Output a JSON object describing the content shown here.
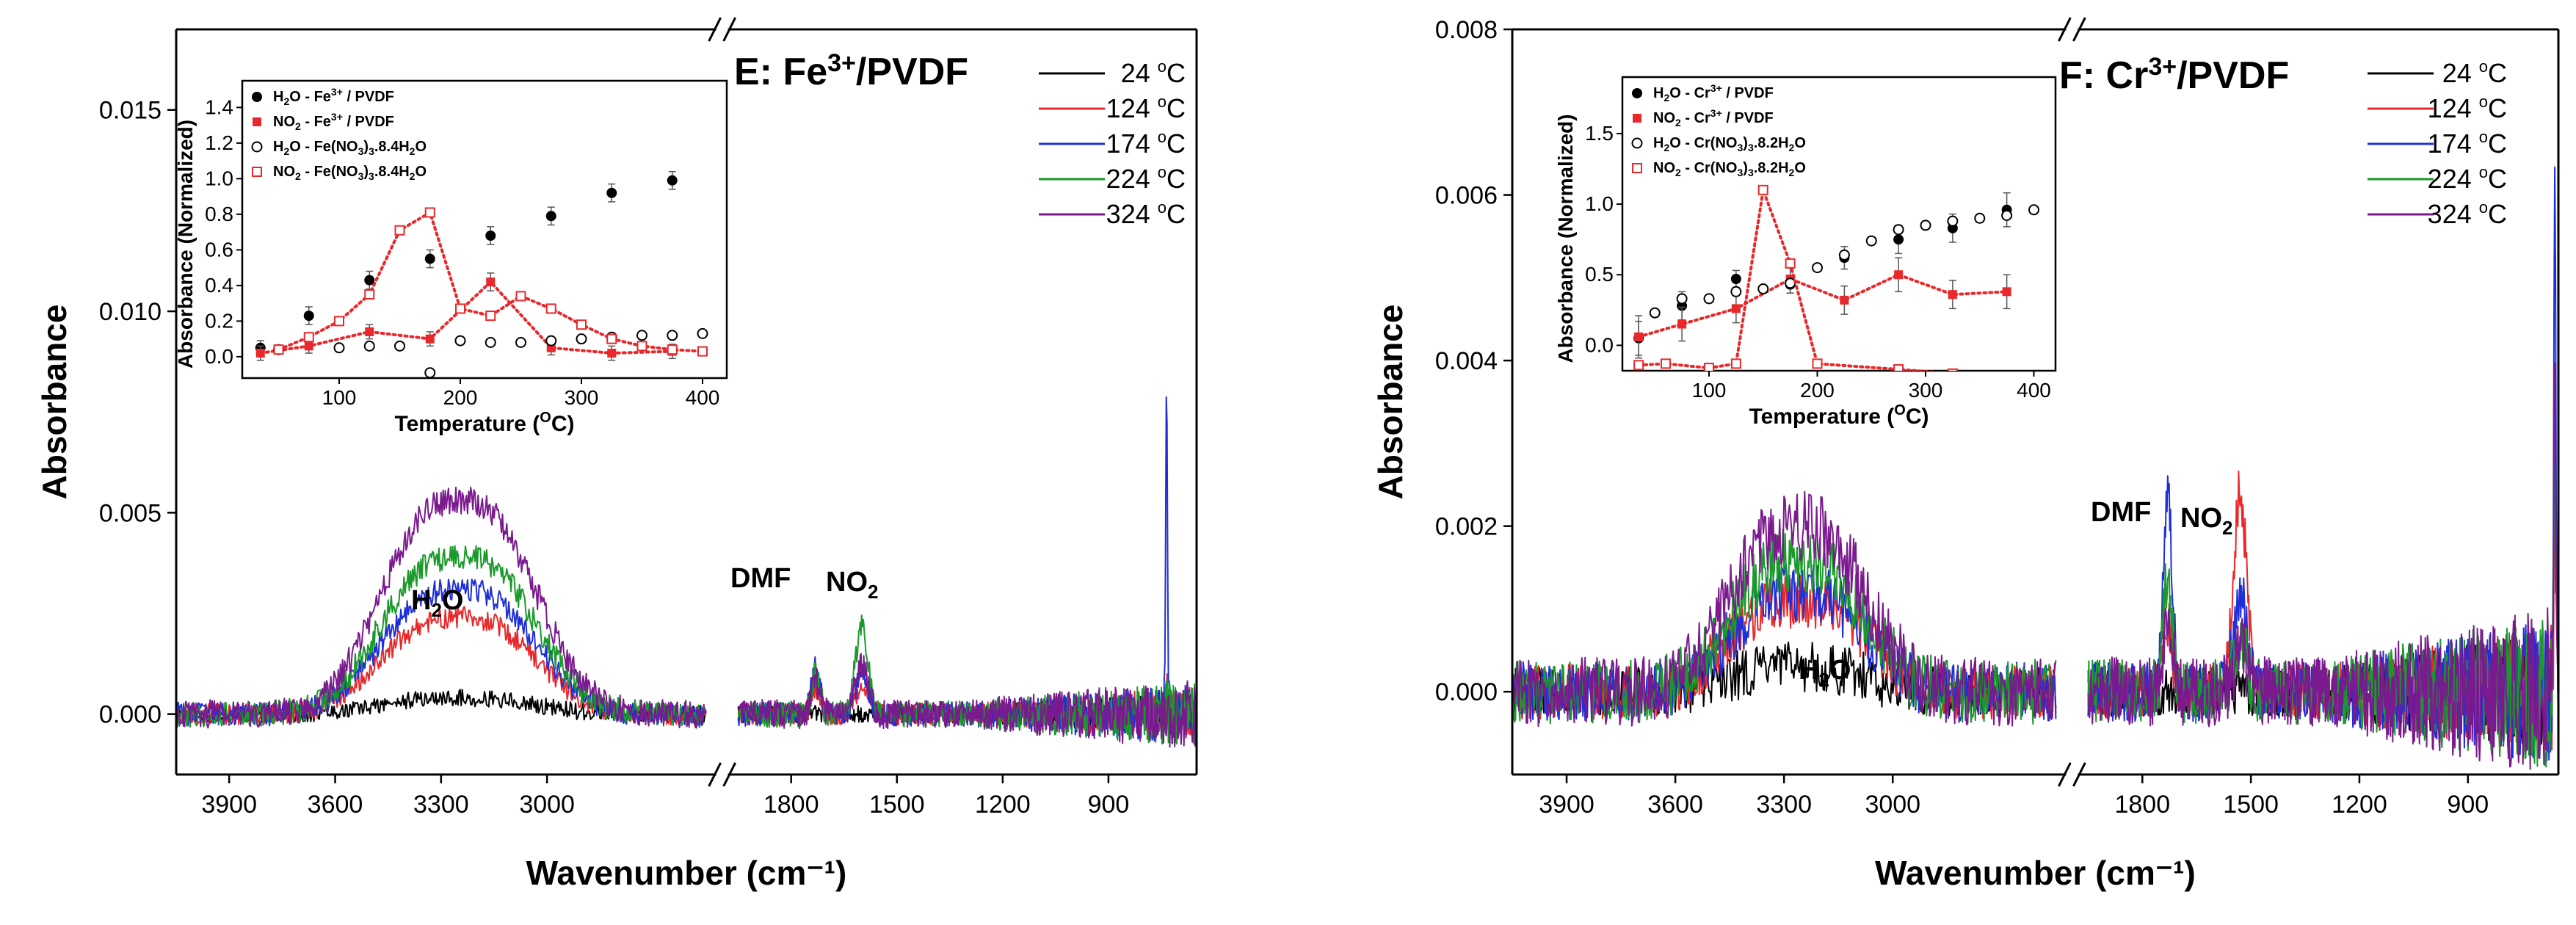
{
  "chart_data": [
    {
      "type": "line",
      "panel": "E",
      "title": "E: Fe3+/PVDF",
      "title_parts": {
        "prefix": "E: Fe",
        "sup": "3+",
        "suffix": "/PVDF"
      },
      "xlabel": "Wavenumber (cm⁻¹)",
      "ylabel": "Absorbance",
      "xlim_left": [
        4050,
        2550
      ],
      "xlim_right": [
        1950,
        650
      ],
      "x_break": true,
      "ylim": [
        -0.0015,
        0.017
      ],
      "yticks": [
        "0.000",
        "0.005",
        "0.010",
        "0.015"
      ],
      "ytick_values": [
        0,
        0.005,
        0.01,
        0.015
      ],
      "xticks_left": [
        "3900",
        "3600",
        "3300",
        "3000"
      ],
      "xticks_left_values": [
        3900,
        3600,
        3300,
        3000
      ],
      "xticks_right": [
        "1800",
        "1500",
        "1200",
        "900"
      ],
      "xticks_right_values": [
        1800,
        1500,
        1200,
        900
      ],
      "annotations": {
        "h2o": {
          "text": "H2O",
          "main": "H",
          "sub": "2",
          "tail": "O"
        },
        "dmf": "DMF",
        "no2": {
          "main": "NO",
          "sub": "2"
        }
      },
      "legend": [
        {
          "label": "24 °C",
          "num": "24",
          "color": "#000000"
        },
        {
          "label": "124 °C",
          "num": "124",
          "color": "#e8282b"
        },
        {
          "label": "174 °C",
          "num": "174",
          "color": "#1f2fd8"
        },
        {
          "label": "224 °C",
          "num": "224",
          "color": "#1a9a2a"
        },
        {
          "label": "324 °C",
          "num": "324",
          "color": "#7a1a8e"
        }
      ],
      "unit_sup": "o",
      "unit": "C",
      "peaks": {
        "h2o_center": 3250,
        "h2o_width": 210,
        "h2o_heights": [
          0.0004,
          0.0024,
          0.0031,
          0.0039,
          0.0053
        ],
        "dmf_center": 1730,
        "dmf_heights": [
          0,
          0.0006,
          0.0012,
          0.001,
          0.0008
        ],
        "no2_center": 1600,
        "no2_heights": [
          0,
          0.0007,
          0.001,
          0.0022,
          0.0012
        ],
        "spike_x": 735,
        "spike_heights": [
          0,
          0.0005,
          0.0085,
          0.0004,
          0.0002
        ],
        "noise": [
          0.00035,
          0.00045,
          0.0005,
          0.00055,
          0.0006
        ]
      },
      "inset": {
        "xlabel": "Temperature (°C)",
        "xlabel_parts": {
          "prefix": "Temperature (",
          "sup": "O",
          "suffix": "C)"
        },
        "ylabel": "Absorbance (Normalized)",
        "xlim": [
          20,
          420
        ],
        "ylim": [
          -0.12,
          1.55
        ],
        "xticks": [
          "100",
          "200",
          "300",
          "400"
        ],
        "xtick_values": [
          100,
          200,
          300,
          400
        ],
        "yticks": [
          "0.0",
          "0.2",
          "0.4",
          "0.6",
          "0.8",
          "1.0",
          "1.2",
          "1.4"
        ],
        "ytick_values": [
          0,
          0.2,
          0.4,
          0.6,
          0.8,
          1.0,
          1.2,
          1.4
        ],
        "legend": [
          {
            "marker": "filled-circle",
            "color": "#000000",
            "a": "H",
            "asub": "2",
            "b": "O - Fe",
            "bsup": "3+",
            "c": " / PVDF"
          },
          {
            "marker": "filled-square",
            "color": "#e8282b",
            "a": "NO",
            "asub": "2",
            "b": " - Fe",
            "bsup": "3+",
            "c": " / PVDF"
          },
          {
            "marker": "open-circle",
            "color": "#000000",
            "a": "H",
            "asub": "2",
            "b": "O - Fe(NO",
            "bsub": "3",
            "c": ")",
            "csub": "3",
            "d": ".8.4H",
            "dsub": "2",
            "e": "O"
          },
          {
            "marker": "open-square",
            "color": "#e8282b",
            "a": "NO",
            "asub": "2",
            "b": " - Fe(NO",
            "bsub": "3",
            "c": ")",
            "csub": "3",
            "d": ".8.4H",
            "dsub": "2",
            "e": "O"
          }
        ],
        "series": [
          {
            "name": "H2O - Fe3+ / PVDF",
            "marker": "filled-circle",
            "x": [
              35,
              75,
              125,
              175,
              225,
              275,
              325,
              375
            ],
            "y": [
              0.05,
              0.23,
              0.43,
              0.55,
              0.68,
              0.79,
              0.92,
              0.99
            ],
            "err": [
              0.04,
              0.05,
              0.05,
              0.05,
              0.05,
              0.05,
              0.05,
              0.05
            ]
          },
          {
            "name": "NO2 - Fe3+ / PVDF",
            "marker": "filled-square",
            "x": [
              35,
              75,
              125,
              175,
              225,
              275,
              325,
              375
            ],
            "y": [
              0.02,
              0.06,
              0.14,
              0.1,
              0.42,
              0.05,
              0.02,
              0.03
            ],
            "err": [
              0.04,
              0.04,
              0.04,
              0.04,
              0.05,
              0.04,
              0.04,
              0.04
            ],
            "dotted_line": true
          },
          {
            "name": "H2O - Fe(NO3)3.8.4H2O",
            "marker": "open-circle",
            "x": [
              50,
              100,
              125,
              150,
              175,
              200,
              225,
              250,
              275,
              300,
              325,
              350,
              375,
              400
            ],
            "y": [
              0.04,
              0.05,
              0.06,
              0.06,
              -0.09,
              0.09,
              0.08,
              0.08,
              0.09,
              0.1,
              0.11,
              0.12,
              0.12,
              0.13
            ]
          },
          {
            "name": "NO2 - Fe(NO3)3.8.4H2O",
            "marker": "open-square",
            "x": [
              50,
              75,
              100,
              125,
              150,
              175,
              200,
              225,
              250,
              275,
              300,
              325,
              350,
              375,
              400
            ],
            "y": [
              0.04,
              0.11,
              0.2,
              0.35,
              0.71,
              0.81,
              0.27,
              0.23,
              0.34,
              0.27,
              0.18,
              0.1,
              0.06,
              0.04,
              0.03
            ],
            "dotted_line": true
          }
        ]
      }
    },
    {
      "type": "line",
      "panel": "F",
      "title": "F: Cr3+/PVDF",
      "title_parts": {
        "prefix": "F: Cr",
        "sup": "3+",
        "suffix": "/PVDF"
      },
      "xlabel": "Wavenumber (cm⁻¹)",
      "ylabel": "Absorbance",
      "xlim_left": [
        4050,
        2550
      ],
      "xlim_right": [
        1950,
        650
      ],
      "x_break": true,
      "ylim": [
        -0.001,
        0.008
      ],
      "yticks": [
        "0.000",
        "0.002",
        "0.004",
        "0.006",
        "0.008"
      ],
      "ytick_values": [
        0,
        0.002,
        0.004,
        0.006,
        0.008
      ],
      "xticks_left": [
        "3900",
        "3600",
        "3300",
        "3000"
      ],
      "xticks_left_values": [
        3900,
        3600,
        3300,
        3000
      ],
      "xticks_right": [
        "1800",
        "1500",
        "1200",
        "900"
      ],
      "xticks_right_values": [
        1800,
        1500,
        1200,
        900
      ],
      "annotations": {
        "h2o": {
          "text": "H2O",
          "main": "H",
          "sub": "2",
          "tail": "O"
        },
        "dmf": "DMF",
        "no2": {
          "main": "NO",
          "sub": "2"
        }
      },
      "legend": [
        {
          "label": "24 °C",
          "num": "24",
          "color": "#000000"
        },
        {
          "label": "124 °C",
          "num": "124",
          "color": "#e8282b"
        },
        {
          "label": "174 °C",
          "num": "174",
          "color": "#1f2fd8"
        },
        {
          "label": "224 °C",
          "num": "224",
          "color": "#1a9a2a"
        },
        {
          "label": "324 °C",
          "num": "324",
          "color": "#7a1a8e"
        }
      ],
      "unit_sup": "o",
      "unit": "C",
      "peaks": {
        "h2o_center": 3260,
        "h2o_width": 180,
        "h2o_heights": [
          0.0003,
          0.0011,
          0.0012,
          0.0016,
          0.002
        ],
        "dmf_center": 1730,
        "dmf_heights": [
          0,
          0.0008,
          0.0024,
          0.0014,
          0.001
        ],
        "no2_center": 1530,
        "no2_heights": [
          0,
          0.0024,
          0.0012,
          0.0006,
          0.0005
        ],
        "spike_x": 660,
        "spike_heights": [
          0.0035,
          0.003,
          0.0064,
          0.0028,
          0.004
        ],
        "noise": [
          0.0005,
          0.00055,
          0.0006,
          0.00065,
          0.0007
        ]
      },
      "inset": {
        "xlabel": "Temperature (°C)",
        "xlabel_parts": {
          "prefix": "Temperature (",
          "sup": "O",
          "suffix": "C)"
        },
        "ylabel": "Absorbance (Normalized)",
        "xlim": [
          20,
          420
        ],
        "ylim": [
          -0.18,
          1.9
        ],
        "xticks": [
          "100",
          "200",
          "300",
          "400"
        ],
        "xtick_values": [
          100,
          200,
          300,
          400
        ],
        "yticks": [
          "0.0",
          "0.5",
          "1.0",
          "1.5"
        ],
        "ytick_values": [
          0,
          0.5,
          1.0,
          1.5
        ],
        "legend": [
          {
            "marker": "filled-circle",
            "color": "#000000",
            "a": "H",
            "asub": "2",
            "b": "O - Cr",
            "bsup": "3+",
            "c": " / PVDF"
          },
          {
            "marker": "filled-square",
            "color": "#e8282b",
            "a": "NO",
            "asub": "2",
            "b": " - Cr",
            "bsup": "3+",
            "c": " / PVDF"
          },
          {
            "marker": "open-circle",
            "color": "#000000",
            "a": "H",
            "asub": "2",
            "b": "O - Cr(NO",
            "bsub": "3",
            "c": ")",
            "csub": "3",
            "d": ".8.2H",
            "dsub": "2",
            "e": "O"
          },
          {
            "marker": "open-square",
            "color": "#e8282b",
            "a": "NO",
            "asub": "2",
            "b": " - Cr(NO",
            "bsub": "3",
            "c": ")",
            "csub": "3",
            "d": ".8.2H",
            "dsub": "2",
            "e": "O"
          }
        ],
        "series": [
          {
            "name": "H2O - Cr3+ / PVDF",
            "marker": "filled-circle",
            "x": [
              35,
              75,
              125,
              175,
              225,
              275,
              325,
              375
            ],
            "y": [
              0.05,
              0.28,
              0.47,
              0.43,
              0.62,
              0.75,
              0.83,
              0.96
            ],
            "err": [
              0.12,
              0.1,
              0.06,
              0.06,
              0.08,
              0.1,
              0.1,
              0.12
            ]
          },
          {
            "name": "NO2 - Cr3+ / PVDF",
            "marker": "filled-square",
            "x": [
              35,
              75,
              125,
              175,
              225,
              275,
              325,
              375
            ],
            "y": [
              0.06,
              0.15,
              0.26,
              0.47,
              0.32,
              0.5,
              0.36,
              0.38
            ],
            "err": [
              0.15,
              0.12,
              0.1,
              0.1,
              0.1,
              0.12,
              0.1,
              0.12
            ],
            "dotted_line": true
          },
          {
            "name": "H2O - Cr(NO3)3.8.2H2O",
            "marker": "open-circle",
            "x": [
              50,
              75,
              100,
              125,
              150,
              175,
              200,
              225,
              250,
              275,
              300,
              325,
              350,
              375,
              400
            ],
            "y": [
              0.23,
              0.33,
              0.33,
              0.38,
              0.4,
              0.44,
              0.55,
              0.64,
              0.74,
              0.82,
              0.85,
              0.88,
              0.9,
              0.92,
              0.96
            ]
          },
          {
            "name": "NO2 - Cr(NO3)3.8.2H2O",
            "marker": "open-square",
            "x": [
              35,
              60,
              100,
              125,
              150,
              175,
              200,
              275,
              325,
              400
            ],
            "y": [
              -0.14,
              -0.13,
              -0.16,
              -0.13,
              1.1,
              0.58,
              -0.13,
              -0.17,
              -0.2,
              -0.26
            ],
            "dotted_line": true
          }
        ]
      }
    }
  ]
}
